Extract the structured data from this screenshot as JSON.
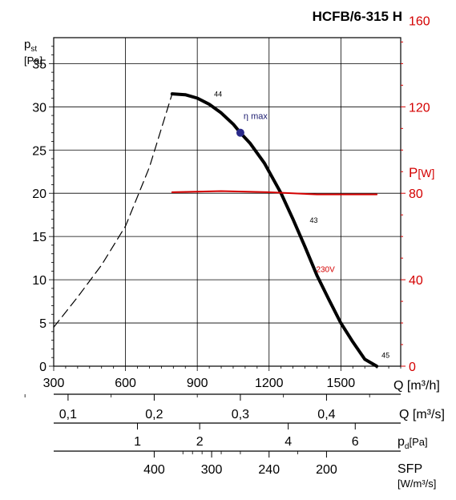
{
  "chart_data": {
    "type": "line",
    "title": "HCFB/6-315 H",
    "x_axis": {
      "label": "Q [m³/h]",
      "range": [
        300,
        1750
      ],
      "ticks": [
        300,
        600,
        900,
        1200,
        1500
      ]
    },
    "y_axis": {
      "label_main": "p",
      "label_sub": "st",
      "label_unit": "[Pa]",
      "range": [
        0,
        38
      ],
      "ticks": [
        0,
        5,
        10,
        15,
        20,
        25,
        30,
        35
      ]
    },
    "y2_axis": {
      "label_main": "P",
      "label_unit": "[W]",
      "color": "#d40000",
      "range": [
        0,
        152
      ],
      "ticks": [
        0,
        40,
        80,
        120,
        160
      ]
    },
    "secondary_scales": [
      {
        "label": "Q [m³/s]",
        "tick_labels": [
          "0,1",
          "0,2",
          "0,3",
          "0,4"
        ],
        "tick_values_q_m3h": [
          360,
          720,
          1080,
          1440
        ]
      },
      {
        "label_main": "p",
        "label_sub": "d",
        "label_unit": "[Pa]",
        "tick_labels": [
          "1",
          "2",
          "4",
          "6"
        ],
        "tick_values_q_m3h": [
          650,
          910,
          1280,
          1560
        ]
      },
      {
        "label": "SFP",
        "label_unit": "[W/m³/s]",
        "tick_labels": [
          "400",
          "300",
          "240",
          "200"
        ],
        "tick_values_q_m3h": [
          720,
          960,
          1200,
          1440
        ]
      }
    ],
    "series": [
      {
        "name": "pressure",
        "style": "solid",
        "color": "#000000",
        "x": [
          795,
          850,
          900,
          950,
          1000,
          1050,
          1080,
          1120,
          1180,
          1250,
          1300,
          1350,
          1400,
          1450,
          1500,
          1550,
          1600,
          1650
        ],
        "y": [
          31.5,
          31.4,
          31.0,
          30.3,
          29.3,
          28.0,
          27.0,
          25.8,
          23.5,
          20.0,
          17.0,
          13.8,
          10.5,
          7.7,
          5.0,
          2.8,
          0.8,
          0
        ]
      },
      {
        "name": "pressure_extension",
        "style": "dashed",
        "color": "#000000",
        "x": [
          300,
          400,
          500,
          600,
          700,
          795
        ],
        "y": [
          4.5,
          8.0,
          11.7,
          16.2,
          23.0,
          31.5
        ]
      },
      {
        "name": "power",
        "axis": "y2",
        "style": "solid",
        "color": "#d40000",
        "x": [
          795,
          1000,
          1200,
          1400,
          1650
        ],
        "y": [
          80.5,
          81,
          80.5,
          79.5,
          79.5
        ]
      }
    ],
    "annotations": [
      {
        "text": "44",
        "x": 950,
        "y": 30.8
      },
      {
        "text": "η max",
        "x": 1080,
        "y": 27.0,
        "color": "#1a1a6e",
        "marker": true
      },
      {
        "text": "43",
        "x": 1350,
        "y": 16.2
      },
      {
        "text": "230V",
        "x": 1430,
        "y": 10.5,
        "color": "#d40000"
      },
      {
        "text": "45",
        "x": 1650,
        "y": 0.6
      }
    ],
    "grid": true
  }
}
